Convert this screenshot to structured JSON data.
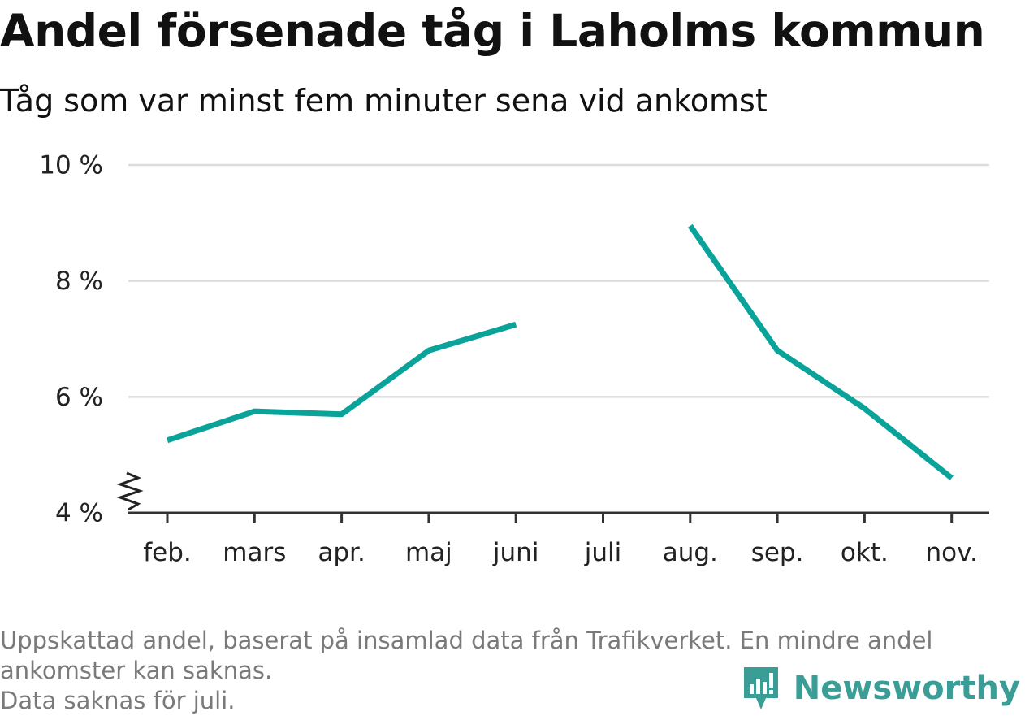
{
  "chart_data": {
    "type": "line",
    "title": "Andel försenade tåg i Laholms kommun",
    "subtitle": "Tåg som var minst fem minuter sena vid ankomst",
    "categories": [
      "feb.",
      "mars",
      "apr.",
      "maj",
      "juni",
      "juli",
      "aug.",
      "sep.",
      "okt.",
      "nov."
    ],
    "series": [
      {
        "values": [
          5.25,
          5.75,
          5.7,
          6.8,
          7.25,
          null,
          8.95,
          6.8,
          5.8,
          4.6
        ]
      }
    ],
    "ylim": [
      4,
      10
    ],
    "yticks": [
      4,
      6,
      8,
      10
    ],
    "ytick_labels": [
      "4 %",
      "6 %",
      "8 %",
      "10 %"
    ],
    "grid": true,
    "line_color": "#0aa39a"
  },
  "footer": {
    "note_line1": "Uppskattad andel, baserat på insamlad data från Trafikverket. En mindre andel",
    "note_line2": "ankomster kan saknas.",
    "note_line3": "Data saknas för juli."
  },
  "brand": {
    "name": "Newsworthy",
    "color": "#3a9e97"
  }
}
